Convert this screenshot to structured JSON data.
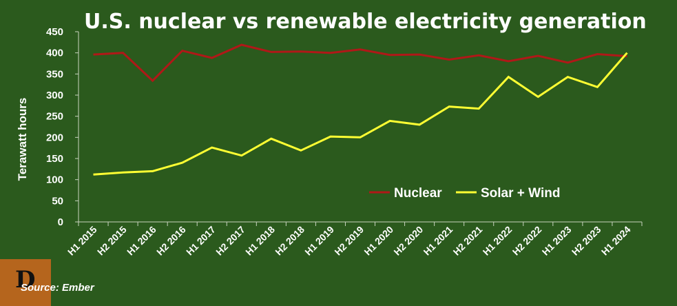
{
  "chart_data": {
    "type": "line",
    "title": "U.S. nuclear vs renewable electricity generation",
    "xlabel": "",
    "ylabel": "Terawatt hours",
    "ylim": [
      0,
      450
    ],
    "yticks": [
      0,
      50,
      100,
      150,
      200,
      250,
      300,
      350,
      400,
      450
    ],
    "categories": [
      "H1 2015",
      "H2 2015",
      "H1 2016",
      "H2 2016",
      "H1 2017",
      "H2 2017",
      "H1 2018",
      "H2 2018",
      "H1 2019",
      "H2 2019",
      "H1 2020",
      "H2 2020",
      "H1 2021",
      "H2 2021",
      "H1 2022",
      "H2 2022",
      "H1 2023",
      "H2 2023",
      "H1 2024"
    ],
    "series": [
      {
        "name": "Nuclear",
        "color": "#b01818",
        "values": [
          396,
          400,
          334,
          405,
          388,
          419,
          402,
          403,
          400,
          408,
          395,
          396,
          384,
          394,
          380,
          393,
          377,
          397,
          392
        ]
      },
      {
        "name": "Solar + Wind",
        "color": "#ffff33",
        "values": [
          112,
          117,
          120,
          140,
          176,
          157,
          197,
          169,
          202,
          200,
          239,
          230,
          273,
          268,
          343,
          296,
          343,
          319,
          400
        ]
      }
    ],
    "legend_position": "lower-right",
    "grid": false
  },
  "source": "Source: Ember",
  "logo_letter": "D",
  "colors": {
    "background": "#2b5a1d",
    "axis": "#c9d4c0",
    "text": "#ffffff"
  }
}
